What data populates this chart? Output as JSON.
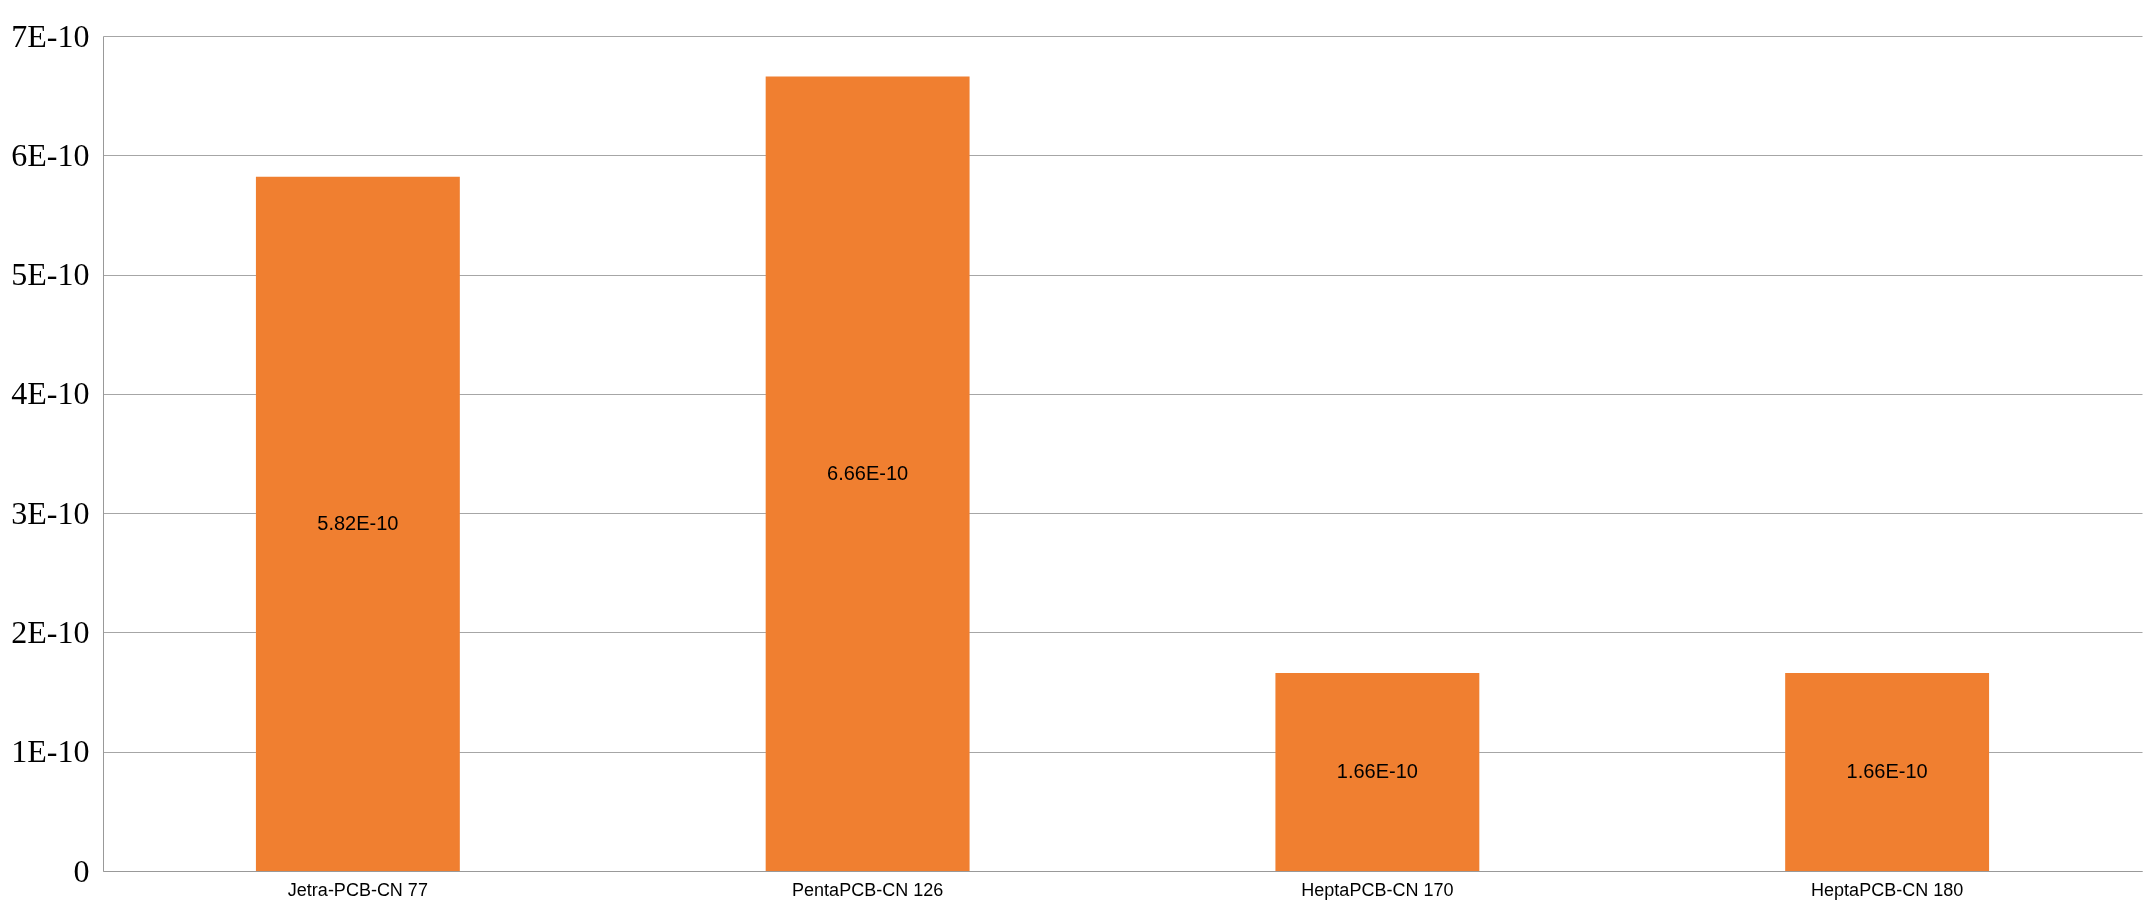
{
  "chart_data": {
    "type": "bar",
    "categories": [
      "Jetra-PCB-CN 77",
      "PentaPCB-CN 126",
      "HeptaPCB-CN 170",
      "HeptaPCB-CN 180"
    ],
    "values": [
      5.82e-10,
      6.66e-10,
      1.66e-10,
      1.66e-10
    ],
    "value_labels": [
      "5.82E-10",
      "6.66E-10",
      "1.66E-10",
      "1.66E-10"
    ],
    "color": "#f07f30",
    "ylim": [
      0,
      7e-10
    ],
    "yticks": [
      0,
      {
        "value": 1e-10,
        "label": "1E-10"
      },
      {
        "value": 2e-10,
        "label": "2E-10"
      },
      {
        "value": 3e-10,
        "label": "3E-10"
      },
      {
        "value": 4e-10,
        "label": "4E-10"
      },
      {
        "value": 5e-10,
        "label": "5E-10"
      },
      {
        "value": 6e-10,
        "label": "6E-10"
      },
      {
        "value": 7e-10,
        "label": "7E-10"
      }
    ],
    "grid": "y"
  }
}
